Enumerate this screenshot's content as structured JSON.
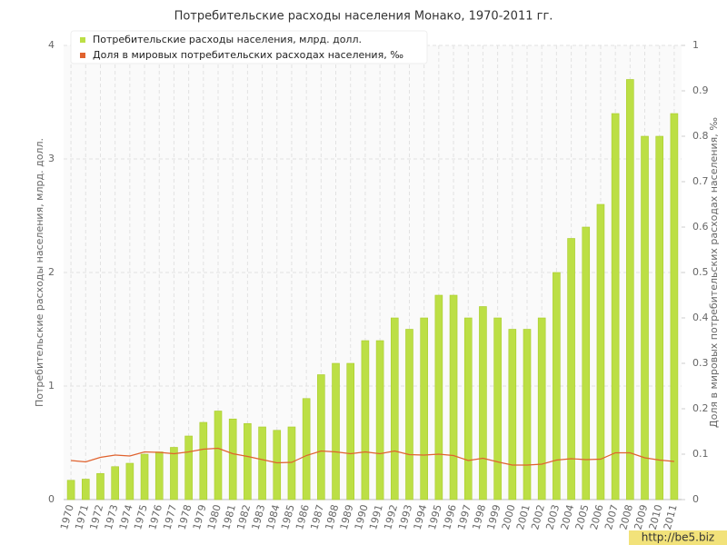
{
  "chart_data": {
    "type": "bar",
    "title": "Потребительские расходы населения Монако, 1970-2011 гг.",
    "y_label": "Потребительские расходы населения, млрд. долл.",
    "y2_label": "Доля в мировых потребительских расходах населения, ‰",
    "watermark": "http://be5.biz",
    "categories": [
      "1970",
      "1971",
      "1972",
      "1973",
      "1974",
      "1975",
      "1976",
      "1977",
      "1978",
      "1979",
      "1980",
      "1981",
      "1982",
      "1983",
      "1984",
      "1985",
      "1986",
      "1987",
      "1988",
      "1989",
      "1990",
      "1991",
      "1992",
      "1993",
      "1994",
      "1995",
      "1996",
      "1997",
      "1998",
      "1999",
      "2000",
      "2001",
      "2002",
      "2003",
      "2004",
      "2005",
      "2006",
      "2007",
      "2008",
      "2009",
      "2010",
      "2011"
    ],
    "series": [
      {
        "name": "Потребительские расходы населения, млрд. долл.",
        "type": "bar",
        "color": "#bcdf45",
        "values": [
          0.17,
          0.18,
          0.23,
          0.29,
          0.32,
          0.4,
          0.42,
          0.46,
          0.56,
          0.68,
          0.78,
          0.71,
          0.67,
          0.64,
          0.61,
          0.64,
          0.89,
          1.1,
          1.2,
          1.2,
          1.4,
          1.4,
          1.6,
          1.5,
          1.6,
          1.8,
          1.8,
          1.6,
          1.7,
          1.6,
          1.5,
          1.5,
          1.6,
          2.0,
          2.3,
          2.4,
          2.6,
          3.4,
          3.7,
          3.2,
          3.2,
          3.4
        ]
      },
      {
        "name": "Доля в мировых потребительских расходах населения, ‰",
        "type": "line",
        "axis": "y2",
        "color": "#e0622e",
        "values": [
          0.086,
          0.083,
          0.093,
          0.098,
          0.096,
          0.105,
          0.104,
          0.101,
          0.105,
          0.111,
          0.113,
          0.101,
          0.095,
          0.088,
          0.081,
          0.082,
          0.097,
          0.107,
          0.105,
          0.101,
          0.105,
          0.101,
          0.107,
          0.099,
          0.098,
          0.1,
          0.097,
          0.086,
          0.091,
          0.083,
          0.076,
          0.076,
          0.078,
          0.087,
          0.09,
          0.088,
          0.089,
          0.103,
          0.103,
          0.092,
          0.087,
          0.084
        ]
      }
    ],
    "ylim": [
      0,
      4
    ],
    "yticks": [
      0,
      1,
      2,
      3,
      4
    ],
    "y2lim": [
      0,
      1
    ],
    "y2ticks": [
      0,
      0.1,
      0.2,
      0.3,
      0.4,
      0.5,
      0.6,
      0.7,
      0.8,
      0.9,
      1
    ],
    "grid": true,
    "legend": "top-left"
  }
}
